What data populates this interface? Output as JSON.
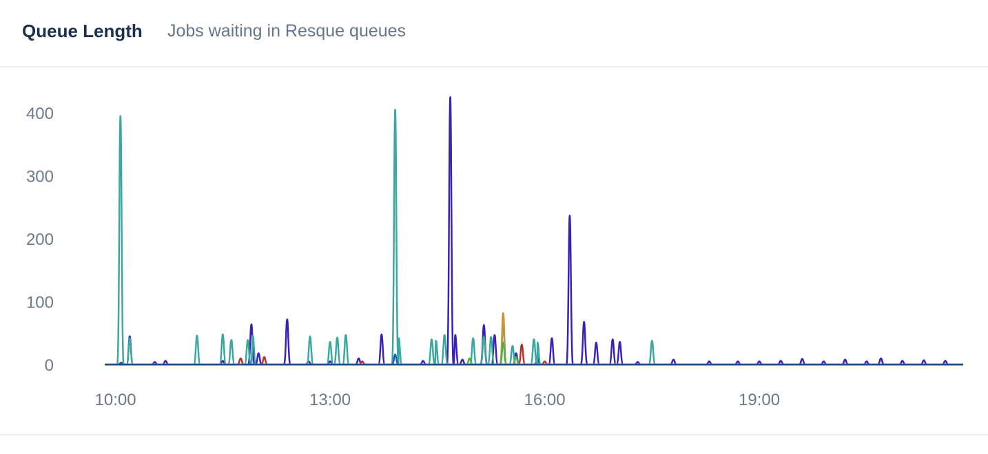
{
  "header": {
    "title": "Queue Length",
    "subtitle": "Jobs waiting in Resque queues"
  },
  "colors": {
    "axis": "#1d4e89",
    "tick_text": "#6a7a8e",
    "series_purple": "#3a22b6",
    "series_teal": "#3aa8a0",
    "series_red": "#b8322a",
    "series_green": "#4caf50",
    "series_orange": "#c9943a",
    "series_blue": "#1f5fbf"
  },
  "chart_data": {
    "type": "line",
    "title": "",
    "xlabel": "",
    "ylabel": "",
    "x_range_hours": [
      9.85,
      21.85
    ],
    "ylim": [
      0,
      430
    ],
    "y_ticks": [
      0,
      100,
      200,
      300,
      400
    ],
    "x_ticks": [
      {
        "hour": 10,
        "label": "10:00"
      },
      {
        "hour": 13,
        "label": "13:00"
      },
      {
        "hour": 16,
        "label": "16:00"
      },
      {
        "hour": 19,
        "label": "19:00"
      }
    ],
    "grid": false,
    "legend": "none",
    "series": [
      {
        "color": "#3a22b6",
        "spikes": [
          [
            10.08,
            3
          ],
          [
            10.2,
            45
          ],
          [
            10.55,
            4
          ],
          [
            10.7,
            6
          ],
          [
            11.5,
            6
          ],
          [
            11.9,
            64
          ],
          [
            12.0,
            18
          ],
          [
            12.4,
            72
          ],
          [
            12.7,
            5
          ],
          [
            13.0,
            5
          ],
          [
            13.4,
            10
          ],
          [
            13.72,
            48
          ],
          [
            14.3,
            6
          ],
          [
            14.68,
            425
          ],
          [
            14.75,
            47
          ],
          [
            14.85,
            8
          ],
          [
            15.15,
            63
          ],
          [
            15.3,
            47
          ],
          [
            15.6,
            18
          ],
          [
            15.9,
            10
          ],
          [
            16.1,
            42
          ],
          [
            16.35,
            237
          ],
          [
            16.55,
            68
          ],
          [
            16.72,
            35
          ],
          [
            16.95,
            40
          ],
          [
            17.05,
            36
          ],
          [
            17.3,
            4
          ],
          [
            17.8,
            8
          ],
          [
            18.3,
            5
          ],
          [
            18.7,
            5
          ],
          [
            19.0,
            5
          ],
          [
            19.3,
            6
          ],
          [
            19.6,
            9
          ],
          [
            19.9,
            5
          ],
          [
            20.2,
            8
          ],
          [
            20.5,
            5
          ],
          [
            20.7,
            10
          ],
          [
            21.0,
            6
          ],
          [
            21.3,
            7
          ],
          [
            21.6,
            6
          ]
        ]
      },
      {
        "color": "#3aa8a0",
        "spikes": [
          [
            10.07,
            395
          ],
          [
            10.2,
            42
          ],
          [
            11.14,
            46
          ],
          [
            11.5,
            48
          ],
          [
            11.62,
            39
          ],
          [
            11.85,
            39
          ],
          [
            11.92,
            46
          ],
          [
            12.72,
            45
          ],
          [
            13.0,
            36
          ],
          [
            13.1,
            43
          ],
          [
            13.22,
            47
          ],
          [
            13.91,
            405
          ],
          [
            13.96,
            42
          ],
          [
            14.42,
            40
          ],
          [
            14.48,
            38
          ],
          [
            14.6,
            47
          ],
          [
            15.0,
            42
          ],
          [
            15.15,
            44
          ],
          [
            15.25,
            44
          ],
          [
            15.42,
            66
          ],
          [
            15.55,
            30
          ],
          [
            15.85,
            40
          ],
          [
            15.9,
            35
          ],
          [
            17.5,
            38
          ]
        ]
      },
      {
        "color": "#b8322a",
        "spikes": [
          [
            11.75,
            10
          ],
          [
            12.08,
            12
          ],
          [
            15.68,
            32
          ],
          [
            13.45,
            5
          ],
          [
            16.0,
            5
          ]
        ]
      },
      {
        "color": "#c9943a",
        "spikes": [
          [
            15.42,
            82
          ]
        ]
      },
      {
        "color": "#4caf50",
        "spikes": [
          [
            15.42,
            35
          ],
          [
            15.6,
            12
          ],
          [
            14.95,
            10
          ]
        ]
      },
      {
        "color": "#1f5fbf",
        "spikes": [
          [
            13.91,
            16
          ]
        ]
      }
    ]
  }
}
